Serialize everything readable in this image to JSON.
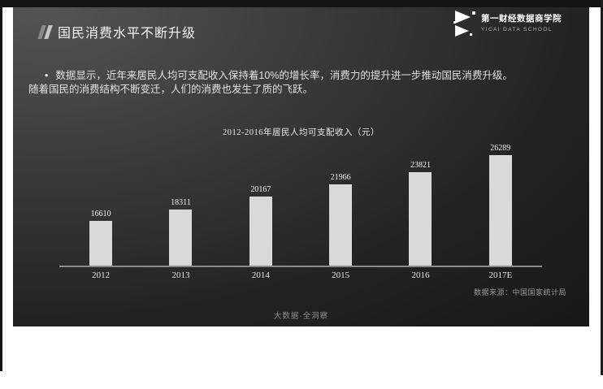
{
  "slide": {
    "title": "国民消费水平不断升级",
    "logo": {
      "name_cn": "第一财经数据商学院",
      "name_en": "YICAI DATA SCHOOL"
    },
    "paragraph": {
      "bullet": "•",
      "line1": "数据显示，近年来居民人均可支配收入保持着10%的增长率，消费力的提升进一步推动国民消费升级。",
      "line2": "随着国民的消费结构不断变迁，人们的消费也发生了质的飞跃。"
    },
    "source": "数据来源：中国国家统计局",
    "footer": "大数据·全洞察"
  },
  "chart_data": {
    "type": "bar",
    "title": "2012-2016年居民人均可支配收入（元）",
    "categories": [
      "2012",
      "2013",
      "2014",
      "2015",
      "2016",
      "2017E"
    ],
    "values": [
      16610,
      18311,
      20167,
      21966,
      23821,
      26289
    ],
    "xlabel": "",
    "ylabel": "",
    "ylim": [
      10000,
      28000
    ],
    "grid": false,
    "legend": "none",
    "bar_color": "#d9d9d9",
    "value_labels": true
  },
  "colors": {
    "slide_bg_dark": "#171717",
    "slide_bg_light": "#545454",
    "frame": "#141414",
    "axis": "#8c8c8c",
    "text": "#e8e8e8"
  }
}
